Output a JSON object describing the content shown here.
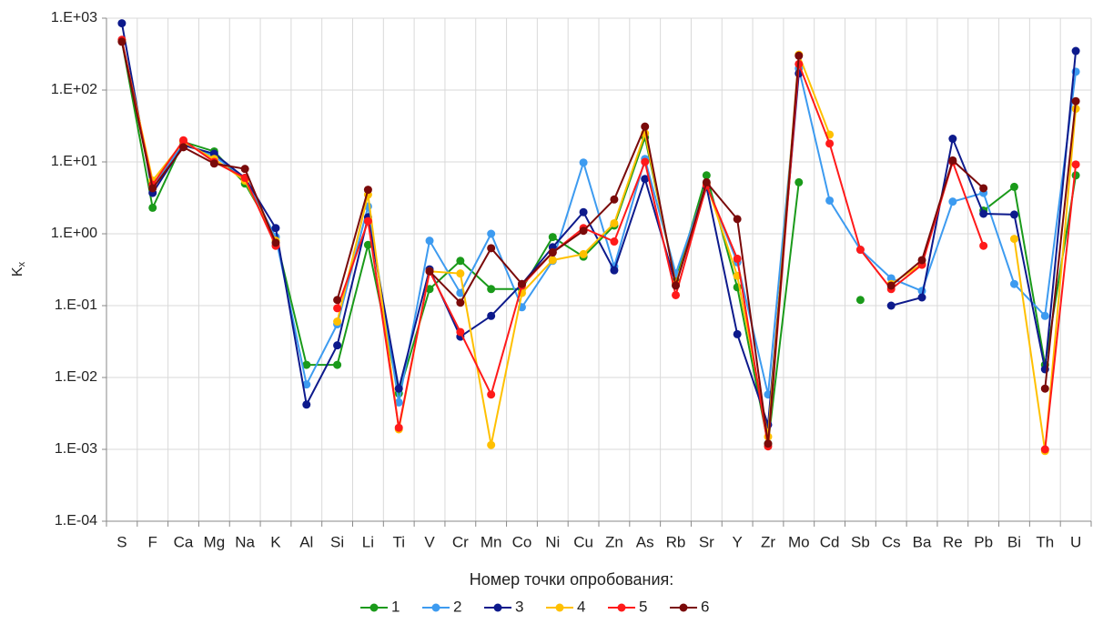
{
  "chart_data": {
    "type": "line",
    "x_label": "Номер точки опробования:",
    "y_label": {
      "main": "K",
      "sub": "x"
    },
    "log_scale": true,
    "grid": true,
    "legend": "bottom",
    "categories": [
      "S",
      "F",
      "Ca",
      "Mg",
      "Na",
      "K",
      "Al",
      "Si",
      "Li",
      "Ti",
      "V",
      "Cr",
      "Mn",
      "Co",
      "Ni",
      "Cu",
      "Zn",
      "As",
      "Rb",
      "Sr",
      "Y",
      "Zr",
      "Mo",
      "Cd",
      "Sb",
      "Cs",
      "Ba",
      "Re",
      "Pb",
      "Bi",
      "Th",
      "U"
    ],
    "ylim": [
      0.0001,
      1000
    ],
    "yticks": [
      {
        "value": 0.0001,
        "label": "1.E-04"
      },
      {
        "value": 0.001,
        "label": "1.E-03"
      },
      {
        "value": 0.01,
        "label": "1.E-02"
      },
      {
        "value": 0.1,
        "label": "1.E-01"
      },
      {
        "value": 1,
        "label": "1.E+00"
      },
      {
        "value": 10,
        "label": "1.E+01"
      },
      {
        "value": 100,
        "label": "1.E+02"
      },
      {
        "value": 1000,
        "label": "1.E+03"
      }
    ],
    "series": [
      {
        "name": "1",
        "color": "#1a9a1a",
        "values": [
          480,
          2.3,
          19,
          14,
          5.0,
          0.9,
          0.015,
          0.015,
          0.7,
          0.006,
          0.17,
          0.42,
          0.17,
          0.17,
          0.9,
          0.48,
          1.3,
          22,
          0.22,
          6.5,
          0.18,
          0.0012,
          5.2,
          null,
          0.12,
          null,
          null,
          null,
          2.1,
          4.5,
          0.015,
          6.5
        ]
      },
      {
        "name": "2",
        "color": "#3d9bf0",
        "values": [
          500,
          4.5,
          18,
          12,
          6,
          0.9,
          0.008,
          0.055,
          2.4,
          0.0045,
          0.8,
          0.15,
          1.0,
          0.095,
          0.42,
          9.8,
          0.35,
          11,
          0.28,
          4.8,
          0.4,
          0.0058,
          200,
          2.9,
          0.6,
          0.24,
          0.16,
          2.8,
          3.7,
          0.2,
          0.072,
          180
        ]
      },
      {
        "name": "3",
        "color": "#0d1a8c",
        "values": [
          850,
          3.7,
          17,
          13,
          6,
          1.2,
          0.0042,
          0.028,
          1.7,
          0.007,
          0.32,
          0.037,
          0.072,
          0.2,
          0.65,
          2.0,
          0.31,
          5.8,
          0.2,
          4.5,
          0.04,
          0.0022,
          170,
          null,
          null,
          0.1,
          0.13,
          21,
          1.9,
          1.85,
          0.013,
          350
        ]
      },
      {
        "name": "4",
        "color": "#ffc000",
        "values": [
          490,
          5.5,
          19,
          11,
          5.5,
          0.8,
          null,
          0.06,
          3.5,
          0.0019,
          0.3,
          0.28,
          0.00115,
          0.15,
          0.43,
          0.52,
          1.4,
          25,
          0.2,
          5,
          0.26,
          0.0015,
          310,
          24,
          null,
          0.2,
          0.38,
          null,
          null,
          0.85,
          0.00095,
          55
        ]
      },
      {
        "name": "5",
        "color": "#ff1a1a",
        "values": [
          500,
          4.8,
          20,
          10,
          6,
          0.68,
          null,
          0.092,
          1.5,
          0.002,
          0.3,
          0.043,
          0.0058,
          0.19,
          0.55,
          1.2,
          0.78,
          10,
          0.14,
          4.7,
          0.45,
          0.0011,
          230,
          18,
          0.6,
          0.17,
          0.37,
          10,
          0.68,
          null,
          0.001,
          9.2
        ]
      },
      {
        "name": "6",
        "color": "#7a0a0a",
        "values": [
          470,
          4.3,
          16,
          9.5,
          8,
          0.75,
          null,
          0.12,
          4.1,
          null,
          0.3,
          0.11,
          0.63,
          0.2,
          0.55,
          1.1,
          3.0,
          31,
          0.19,
          5.2,
          1.6,
          0.0012,
          300,
          null,
          null,
          0.19,
          0.43,
          10.5,
          4.3,
          null,
          0.007,
          70
        ]
      }
    ]
  }
}
